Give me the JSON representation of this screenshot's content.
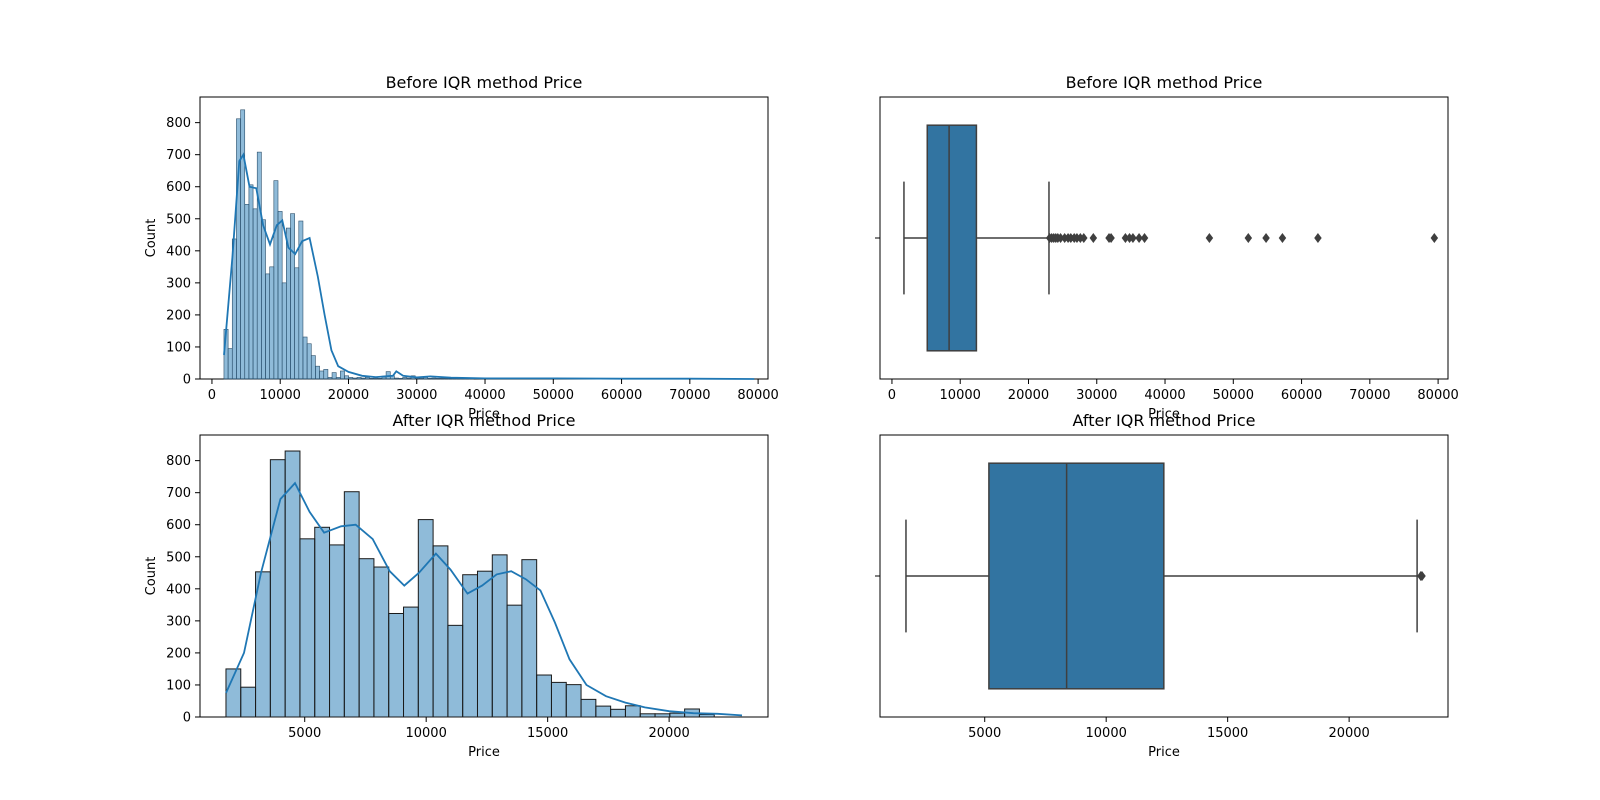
{
  "chart_data": [
    {
      "type": "histogram",
      "title": "Before IQR method Price",
      "xlabel": "Price",
      "ylabel": "Count",
      "xlim": [
        -1750,
        81450
      ],
      "ylim": [
        0,
        880
      ],
      "xticks": [
        0,
        10000,
        20000,
        30000,
        40000,
        50000,
        60000,
        70000,
        80000
      ],
      "yticks": [
        0,
        100,
        200,
        300,
        400,
        500,
        600,
        700,
        800
      ],
      "bin_start": 1759,
      "bin_width": 609,
      "values": [
        155,
        95,
        437,
        812,
        840,
        545,
        606,
        531,
        708,
        497,
        328,
        350,
        619,
        523,
        300,
        471,
        516,
        347,
        493,
        131,
        110,
        73,
        40,
        25,
        30,
        5,
        20,
        5,
        25,
        10,
        5,
        3,
        5,
        3,
        5,
        2,
        3,
        2,
        6,
        23,
        10,
        3,
        2,
        5,
        3,
        10,
        3,
        3,
        5,
        2,
        3,
        2,
        2,
        2,
        5,
        2,
        1,
        1,
        1,
        2
      ],
      "kde": {
        "x": [
          1759,
          3000,
          4000,
          4600,
          5500,
          6500,
          7500,
          8500,
          9500,
          10300,
          11200,
          12200,
          13200,
          14300,
          15500,
          16500,
          17500,
          18500,
          20000,
          22000,
          24000,
          26500,
          27000,
          28000,
          30000,
          32000,
          35000,
          40000,
          50000,
          60000,
          70000,
          79449
        ],
        "y": [
          75,
          380,
          680,
          700,
          600,
          595,
          480,
          420,
          480,
          495,
          410,
          390,
          430,
          440,
          320,
          200,
          90,
          40,
          22,
          10,
          6,
          10,
          24,
          10,
          5,
          8,
          4,
          2,
          2,
          1,
          1,
          0
        ]
      }
    },
    {
      "type": "boxplot",
      "title": "Before IQR method Price",
      "xlabel": "Price",
      "xlim": [
        -1750,
        81450
      ],
      "xticks": [
        0,
        10000,
        20000,
        30000,
        40000,
        50000,
        60000,
        70000,
        80000
      ],
      "whisker_low": 1759,
      "q1": 5172,
      "median": 8372,
      "q3": 12373,
      "whisker_high": 23001,
      "outliers": [
        23100,
        23400,
        23700,
        24000,
        24300,
        24700,
        25300,
        25800,
        26200,
        26700,
        27100,
        27600,
        28100,
        29500,
        31800,
        32100,
        34200,
        34800,
        35300,
        36200,
        37000,
        46500,
        52200,
        54800,
        57200,
        62400,
        79449
      ]
    },
    {
      "type": "histogram",
      "title": "After IQR method Price",
      "xlabel": "Price",
      "ylabel": "Count",
      "xlim": [
        690,
        24070
      ],
      "ylim": [
        0,
        880
      ],
      "xticks": [
        5000,
        10000,
        15000,
        20000
      ],
      "yticks": [
        0,
        100,
        200,
        300,
        400,
        500,
        600,
        700,
        800
      ],
      "bin_start": 1759,
      "bin_width": 609,
      "values": [
        150,
        93,
        453,
        803,
        830,
        556,
        592,
        537,
        703,
        494,
        468,
        323,
        343,
        616,
        534,
        286,
        444,
        455,
        506,
        349,
        491,
        131,
        108,
        101,
        55,
        34,
        24,
        35,
        10,
        10,
        12,
        25,
        8
      ],
      "kde": {
        "x": [
          1759,
          2500,
          3200,
          4000,
          4600,
          5200,
          5800,
          6500,
          7100,
          7800,
          8500,
          9100,
          9700,
          10400,
          11000,
          11700,
          12300,
          12900,
          13500,
          14100,
          14700,
          15300,
          15900,
          16600,
          17400,
          18200,
          19000,
          20000,
          21000,
          22000,
          23001
        ],
        "y": [
          75,
          200,
          450,
          680,
          730,
          640,
          575,
          595,
          600,
          555,
          455,
          410,
          450,
          510,
          460,
          385,
          410,
          445,
          455,
          430,
          395,
          295,
          180,
          100,
          65,
          45,
          30,
          18,
          12,
          10,
          5
        ]
      }
    },
    {
      "type": "boxplot",
      "title": "After IQR method Price",
      "xlabel": "Price",
      "xlim": [
        690,
        24070
      ],
      "xticks": [
        5000,
        10000,
        15000,
        20000
      ],
      "whisker_low": 1759,
      "q1": 5172,
      "median": 8372,
      "q3": 12373,
      "whisker_high": 22798,
      "outliers": [
        22950,
        23001
      ]
    }
  ]
}
